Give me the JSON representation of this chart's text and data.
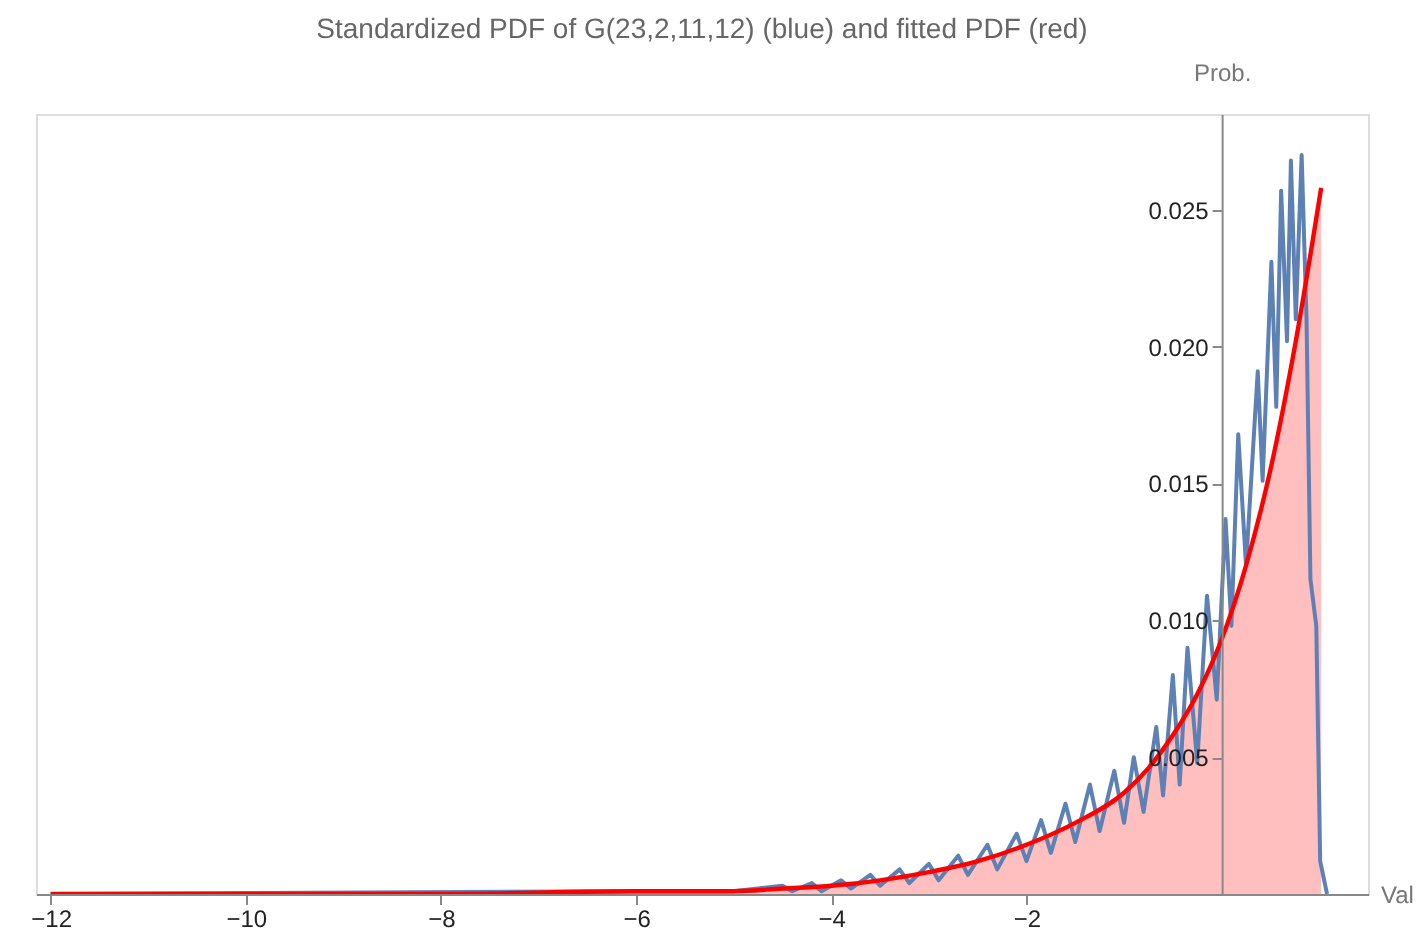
{
  "chart_data": {
    "type": "line",
    "title": "Standardized PDF of G(23,2,11,12)  (blue) and fitted PDF (red)",
    "xlabel": "Val",
    "ylabel": "Prob.",
    "xlim": [
      -12.15,
      1.5
    ],
    "ylim": [
      0,
      0.0285
    ],
    "xticks": [
      -12,
      -10,
      -8,
      -6,
      -4,
      -2
    ],
    "yticks": [
      0.005,
      {
        "value": 0.01,
        "label": "0.010"
      },
      0.015,
      {
        "value": 0.02,
        "label": "0.020"
      },
      0.025
    ],
    "grid": false,
    "marker": "none",
    "line_style": "solid",
    "series": [
      {
        "color": "#5e81b5",
        "x": [
          -12,
          -6,
          -5,
          -4.5,
          -4.4,
          -4.2,
          -4.1,
          -3.9,
          -3.8,
          -3.6,
          -3.5,
          -3.3,
          -3.2,
          -3.0,
          -2.9,
          -2.7,
          -2.6,
          -2.4,
          -2.3,
          -2.1,
          -2.0,
          -1.85,
          -1.75,
          -1.6,
          -1.5,
          -1.35,
          -1.25,
          -1.1,
          -1.0,
          -0.9,
          -0.8,
          -0.67,
          -0.6,
          -0.5,
          -0.43,
          -0.35,
          -0.25,
          -0.15,
          -0.05,
          0.04,
          0.1,
          0.17,
          0.25,
          0.37,
          0.42,
          0.51,
          0.56,
          0.61,
          0.67,
          0.71,
          0.76,
          0.82,
          0.87,
          0.91,
          0.97,
          1.01,
          1.08
        ],
        "values": [
          0,
          0.0001,
          0.0001,
          0.0003,
          0.0001,
          0.0004,
          0.0001,
          0.0005,
          0.0002,
          0.0007,
          0.0003,
          0.0009,
          0.0004,
          0.0011,
          0.0005,
          0.0014,
          0.0007,
          0.0018,
          0.0009,
          0.0022,
          0.0012,
          0.0027,
          0.0015,
          0.0033,
          0.0019,
          0.004,
          0.0023,
          0.0045,
          0.0026,
          0.005,
          0.003,
          0.0061,
          0.0036,
          0.008,
          0.004,
          0.009,
          0.0048,
          0.0109,
          0.0071,
          0.0137,
          0.0098,
          0.0168,
          0.012,
          0.0191,
          0.0151,
          0.0231,
          0.0178,
          0.0257,
          0.0202,
          0.0268,
          0.021,
          0.027,
          0.021,
          0.0115,
          0.0098,
          0.0012,
          0
        ]
      },
      {
        "type": "area",
        "color": "#ff0000",
        "x": [
          -12,
          -8,
          -6,
          -5,
          -4.5,
          -4,
          -3.5,
          -3,
          -2.5,
          -2,
          -1.5,
          -1,
          -0.75,
          -0.5,
          -0.25,
          0,
          0.25,
          0.5,
          0.75,
          1.02
        ],
        "values": [
          0,
          0,
          0.0001,
          0.0001,
          0.0002,
          0.0003,
          0.0005,
          0.0008,
          0.0012,
          0.0018,
          0.0026,
          0.0037,
          0.0046,
          0.0058,
          0.0073,
          0.0093,
          0.012,
          0.0155,
          0.02,
          0.0258
        ]
      }
    ]
  }
}
